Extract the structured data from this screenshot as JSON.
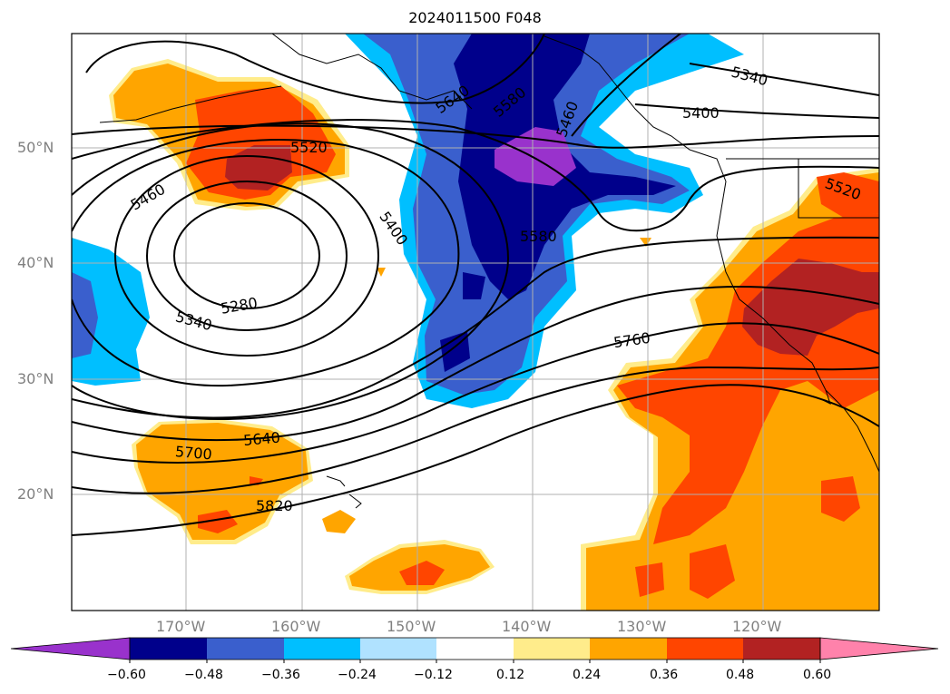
{
  "title": "2024011500 F048",
  "map": {
    "lat_labels": [
      "50°N",
      "40°N",
      "30°N",
      "20°N"
    ],
    "lon_labels": [
      "170°W",
      "160°W",
      "150°W",
      "140°W",
      "130°W",
      "120°W"
    ],
    "contour_labels": [
      "5640",
      "5580",
      "5460",
      "5340",
      "5400",
      "5520",
      "5460",
      "5400",
      "5280",
      "5340",
      "5580",
      "5520",
      "5760",
      "5640",
      "5700",
      "5820"
    ]
  },
  "colorbar": {
    "ticks": [
      "−0.60",
      "−0.48",
      "−0.36",
      "−0.24",
      "−0.12",
      "0.12",
      "0.24",
      "0.36",
      "0.48",
      "0.60"
    ],
    "colors": [
      "#9932cc",
      "#00008b",
      "#3a5fcd",
      "#00bfff",
      "#b0e2ff",
      "#ffffff",
      "#ffec8b",
      "#ffa500",
      "#ff4500",
      "#b22222",
      "#ff82ab"
    ]
  }
}
